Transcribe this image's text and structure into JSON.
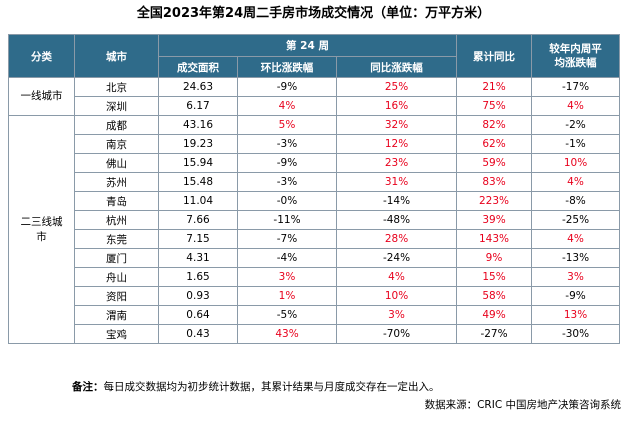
{
  "title": "全国2023年第24周二手房市场成交情况（单位：万平方米）",
  "headers": {
    "category": "分类",
    "city": "城市",
    "week_group": "第 24 周",
    "area": "成交面积",
    "mom": "环比涨跌幅",
    "yoy": "同比涨跌幅",
    "cumulative": "累计同比",
    "avg_vs_line1": "较年内周平",
    "avg_vs_line2": "均涨跌幅"
  },
  "groups": {
    "tier1": "一线城市",
    "tier23_line1": "二三线城",
    "tier23_line2": "市"
  },
  "rows": [
    {
      "city": "北京",
      "area": "24.63",
      "mom": "-9%",
      "mom_color": "black",
      "yoy": "25%",
      "yoy_color": "red",
      "cum": "21%",
      "cum_color": "red",
      "avg": "-17%",
      "avg_color": "black"
    },
    {
      "city": "深圳",
      "area": "6.17",
      "mom": "4%",
      "mom_color": "red",
      "yoy": "16%",
      "yoy_color": "red",
      "cum": "75%",
      "cum_color": "red",
      "avg": "4%",
      "avg_color": "red"
    },
    {
      "city": "成都",
      "area": "43.16",
      "mom": "5%",
      "mom_color": "red",
      "yoy": "32%",
      "yoy_color": "red",
      "cum": "82%",
      "cum_color": "red",
      "avg": "-2%",
      "avg_color": "black"
    },
    {
      "city": "南京",
      "area": "19.23",
      "mom": "-3%",
      "mom_color": "black",
      "yoy": "12%",
      "yoy_color": "red",
      "cum": "62%",
      "cum_color": "red",
      "avg": "-1%",
      "avg_color": "black"
    },
    {
      "city": "佛山",
      "area": "15.94",
      "mom": "-9%",
      "mom_color": "black",
      "yoy": "23%",
      "yoy_color": "red",
      "cum": "59%",
      "cum_color": "red",
      "avg": "10%",
      "avg_color": "red"
    },
    {
      "city": "苏州",
      "area": "15.48",
      "mom": "-3%",
      "mom_color": "black",
      "yoy": "31%",
      "yoy_color": "red",
      "cum": "83%",
      "cum_color": "red",
      "avg": "4%",
      "avg_color": "red"
    },
    {
      "city": "青岛",
      "area": "11.04",
      "mom": "-0%",
      "mom_color": "black",
      "yoy": "-14%",
      "yoy_color": "black",
      "cum": "223%",
      "cum_color": "red",
      "avg": "-8%",
      "avg_color": "black"
    },
    {
      "city": "杭州",
      "area": "7.66",
      "mom": "-11%",
      "mom_color": "black",
      "yoy": "-48%",
      "yoy_color": "black",
      "cum": "39%",
      "cum_color": "red",
      "avg": "-25%",
      "avg_color": "black"
    },
    {
      "city": "东莞",
      "area": "7.15",
      "mom": "-7%",
      "mom_color": "black",
      "yoy": "28%",
      "yoy_color": "red",
      "cum": "143%",
      "cum_color": "red",
      "avg": "4%",
      "avg_color": "red"
    },
    {
      "city": "厦门",
      "area": "4.31",
      "mom": "-4%",
      "mom_color": "black",
      "yoy": "-24%",
      "yoy_color": "black",
      "cum": "9%",
      "cum_color": "red",
      "avg": "-13%",
      "avg_color": "black"
    },
    {
      "city": "舟山",
      "area": "1.65",
      "mom": "3%",
      "mom_color": "red",
      "yoy": "4%",
      "yoy_color": "red",
      "cum": "15%",
      "cum_color": "red",
      "avg": "3%",
      "avg_color": "red"
    },
    {
      "city": "资阳",
      "area": "0.93",
      "mom": "1%",
      "mom_color": "red",
      "yoy": "10%",
      "yoy_color": "red",
      "cum": "58%",
      "cum_color": "red",
      "avg": "-9%",
      "avg_color": "black"
    },
    {
      "city": "渭南",
      "area": "0.64",
      "mom": "-5%",
      "mom_color": "black",
      "yoy": "3%",
      "yoy_color": "red",
      "cum": "49%",
      "cum_color": "red",
      "avg": "13%",
      "avg_color": "red"
    },
    {
      "city": "宝鸡",
      "area": "0.43",
      "mom": "43%",
      "mom_color": "red",
      "yoy": "-70%",
      "yoy_color": "black",
      "cum": "-27%",
      "cum_color": "black",
      "avg": "-30%",
      "avg_color": "black"
    }
  ],
  "note_label": "备注：",
  "note_text": "每日成交数据均为初步统计数据，其累计结果与月度成交存在一定出入。",
  "source": "数据来源：CRIC 中国房地产决策咨询系统",
  "colors": {
    "header_bg": "#2f6b8a",
    "red": "#e8001c",
    "border": "#8a9aa8"
  }
}
